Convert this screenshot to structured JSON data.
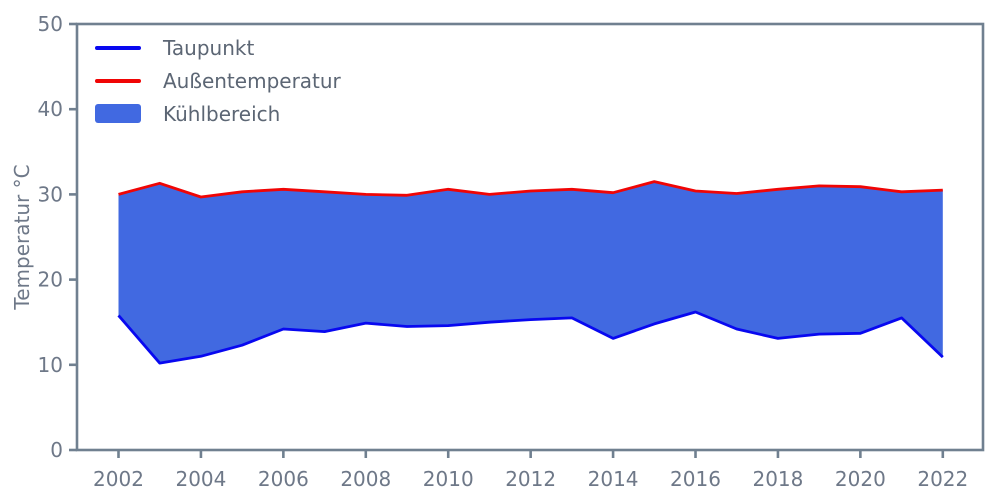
{
  "chart_data": {
    "type": "area",
    "title": "",
    "xlabel": "",
    "ylabel": "Temperatur °C",
    "x": [
      2002,
      2003,
      2004,
      2005,
      2006,
      2007,
      2008,
      2009,
      2010,
      2011,
      2012,
      2013,
      2014,
      2015,
      2016,
      2017,
      2018,
      2019,
      2020,
      2021,
      2022
    ],
    "series": [
      {
        "name": "Taupunkt",
        "color": "#0808f0",
        "values": [
          15.8,
          10.2,
          11.0,
          12.3,
          14.2,
          13.9,
          14.9,
          14.5,
          14.6,
          15.0,
          15.3,
          15.5,
          13.1,
          14.8,
          16.2,
          14.2,
          13.1,
          13.6,
          13.7,
          15.5,
          10.9
        ]
      },
      {
        "name": "Außentemperatur",
        "color": "#f00505",
        "values": [
          30.0,
          31.3,
          29.7,
          30.3,
          30.6,
          30.3,
          30.0,
          29.9,
          30.6,
          30.0,
          30.4,
          30.6,
          30.2,
          31.5,
          30.4,
          30.1,
          30.6,
          31.0,
          30.9,
          30.3,
          30.5
        ]
      }
    ],
    "fill": {
      "name": "Kühlbereich",
      "color": "#4169e1",
      "between": [
        "Taupunkt",
        "Außentemperatur"
      ]
    },
    "ylim": [
      0,
      50
    ],
    "yticks": [
      0,
      10,
      20,
      30,
      40,
      50
    ],
    "xticks": [
      2002,
      2004,
      2006,
      2008,
      2010,
      2012,
      2014,
      2016,
      2018,
      2020,
      2022
    ],
    "grid": false,
    "legend_position": "upper-left",
    "axis_color": "#708090",
    "tick_label_color": "#6e7888",
    "legend_text_color": "#5c6674"
  }
}
